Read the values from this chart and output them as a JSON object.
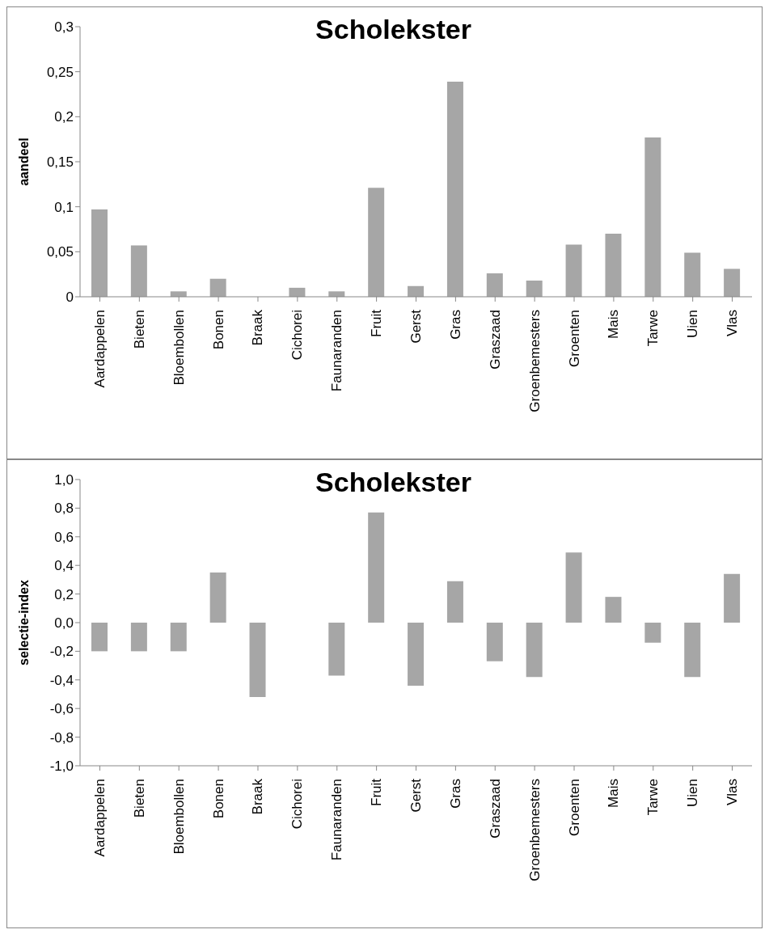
{
  "chart_data": [
    {
      "type": "bar",
      "title": "Scholekster",
      "ylabel": "aandeel",
      "categories": [
        "Aardappelen",
        "Bieten",
        "Bloembollen",
        "Bonen",
        "Braak",
        "Cichorei",
        "Faunaranden",
        "Fruit",
        "Gerst",
        "Gras",
        "Graszaad",
        "Groenbemesters",
        "Groenten",
        "Mais",
        "Tarwe",
        "Uien",
        "Vlas"
      ],
      "values": [
        0.097,
        0.057,
        0.006,
        0.02,
        null,
        0.01,
        0.006,
        0.121,
        0.012,
        0.239,
        0.026,
        0.018,
        0.058,
        0.07,
        0.177,
        0.049,
        0.031
      ],
      "color": "#a6a6a6",
      "ylim": [
        0,
        0.3
      ],
      "yticks": [
        0,
        {
          "value": 0.05,
          "label": "0,05"
        },
        {
          "value": 0.1,
          "label": "0,1"
        },
        {
          "value": 0.15,
          "label": "0,15"
        },
        {
          "value": 0.2,
          "label": "0,2"
        },
        {
          "value": 0.25,
          "label": "0,25"
        },
        {
          "value": 0.3,
          "label": "0,3"
        }
      ],
      "grid": false,
      "legend": false
    },
    {
      "type": "bar",
      "title": "Scholekster",
      "ylabel": "selectie-index",
      "categories": [
        "Aardappelen",
        "Bieten",
        "Bloembollen",
        "Bonen",
        "Braak",
        "Cichorei",
        "Faunaranden",
        "Fruit",
        "Gerst",
        "Gras",
        "Graszaad",
        "Groenbemesters",
        "Groenten",
        "Mais",
        "Tarwe",
        "Uien",
        "Vlas"
      ],
      "values": [
        -0.2,
        -0.2,
        -0.2,
        0.35,
        -0.52,
        null,
        -0.37,
        0.77,
        -0.44,
        0.29,
        -0.27,
        -0.38,
        0.49,
        0.18,
        -0.14,
        -0.38,
        0.34
      ],
      "color": "#a6a6a6",
      "ylim": [
        -1,
        1
      ],
      "yticks": [
        {
          "value": -1,
          "label": "-1,0"
        },
        {
          "value": -0.8,
          "label": "-0,8"
        },
        {
          "value": -0.6,
          "label": "-0,6"
        },
        {
          "value": -0.4,
          "label": "-0,4"
        },
        {
          "value": -0.2,
          "label": "-0,2"
        },
        {
          "value": 0,
          "label": "0,0"
        },
        {
          "value": 0.2,
          "label": "0,2"
        },
        {
          "value": 0.4,
          "label": "0,4"
        },
        {
          "value": 0.6,
          "label": "0,6"
        },
        {
          "value": 0.8,
          "label": "0,8"
        },
        {
          "value": 1,
          "label": "1,0"
        }
      ],
      "grid": false,
      "legend": false
    }
  ]
}
